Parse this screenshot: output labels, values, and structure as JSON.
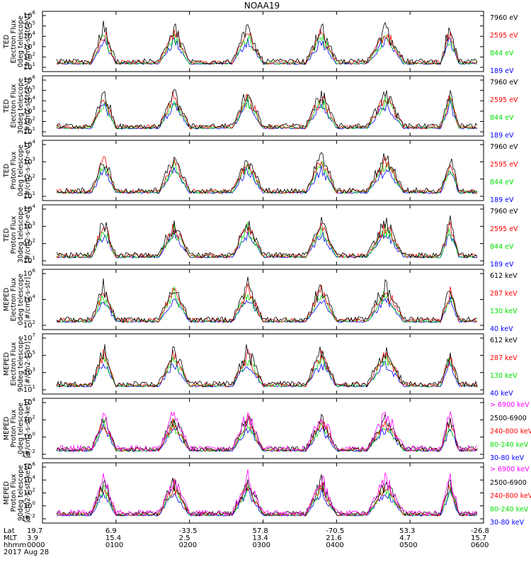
{
  "title": "NOAA19",
  "colors": {
    "black": "#000000",
    "blue": "#0000ff",
    "red": "#ff0000",
    "green": "#00e000",
    "magenta": "#ff00ff"
  },
  "chart_data": [
    {
      "type": "line",
      "ylabel": [
        "TED",
        "Electron Flux",
        "0deg telescope",
        "[#/cm2-s-str-eV]"
      ],
      "ylog": true,
      "yticks": [
        {
          "label": "10",
          "exp": "1"
        },
        {
          "label": "10",
          "exp": "2"
        },
        {
          "label": "10",
          "exp": "3"
        },
        {
          "label": "10",
          "exp": "4"
        },
        {
          "label": "10",
          "exp": "5"
        },
        {
          "label": "10",
          "exp": "6"
        }
      ],
      "series": [
        {
          "name": "7960 eV",
          "color": "#000000"
        },
        {
          "name": "2595 eV",
          "color": "#ff0000"
        },
        {
          "name": "844 eV",
          "color": "#00e000"
        },
        {
          "name": "189 eV",
          "color": "#0000ff"
        }
      ]
    },
    {
      "type": "line",
      "ylabel": [
        "TED",
        "Electron Flux",
        "30deg telescope",
        "[#/cm2-s-str-eV]"
      ],
      "ylog": true,
      "yticks": [
        {
          "label": "10",
          "exp": "1"
        },
        {
          "label": "10",
          "exp": "2"
        },
        {
          "label": "10",
          "exp": "3"
        },
        {
          "label": "10",
          "exp": "4"
        },
        {
          "label": "10",
          "exp": "5"
        },
        {
          "label": "10",
          "exp": "6"
        }
      ],
      "series": [
        {
          "name": "7960 eV",
          "color": "#000000"
        },
        {
          "name": "2595 eV",
          "color": "#ff0000"
        },
        {
          "name": "844 eV",
          "color": "#00e000"
        },
        {
          "name": "189 eV",
          "color": "#0000ff"
        }
      ]
    },
    {
      "type": "line",
      "ylabel": [
        "TED",
        "Proton Flux",
        "0deg telescope",
        "[#/cm2-s-str-eV]"
      ],
      "ylog": true,
      "yticks": [
        {
          "label": "10",
          "exp": "1"
        },
        {
          "label": "10",
          "exp": "2"
        },
        {
          "label": "10",
          "exp": "3"
        },
        {
          "label": "10",
          "exp": "4"
        }
      ],
      "series": [
        {
          "name": "7960 eV",
          "color": "#000000"
        },
        {
          "name": "2595 eV",
          "color": "#ff0000"
        },
        {
          "name": "844 eV",
          "color": "#00e000"
        },
        {
          "name": "189 eV",
          "color": "#0000ff"
        }
      ]
    },
    {
      "type": "line",
      "ylabel": [
        "TED",
        "Proton Flux",
        "30deg telescope",
        "[#/cm2-s-str-eV]"
      ],
      "ylog": true,
      "yticks": [
        {
          "label": "10",
          "exp": "1"
        },
        {
          "label": "10",
          "exp": "2"
        },
        {
          "label": "10",
          "exp": "3"
        },
        {
          "label": "10",
          "exp": "4"
        }
      ],
      "series": [
        {
          "name": "7960 eV",
          "color": "#000000"
        },
        {
          "name": "2595 eV",
          "color": "#ff0000"
        },
        {
          "name": "844 eV",
          "color": "#00e000"
        },
        {
          "name": "189 eV",
          "color": "#0000ff"
        }
      ]
    },
    {
      "type": "line",
      "ylabel": [
        "MEPED",
        "Electron Flux",
        "0deg telescope",
        "[#/cm2-s-str]"
      ],
      "ylog": true,
      "yticks": [
        {
          "label": "10",
          "exp": "2"
        },
        {
          "label": "10",
          "exp": "4"
        },
        {
          "label": "10",
          "exp": "6"
        }
      ],
      "series": [
        {
          "name": "612 keV",
          "color": "#000000"
        },
        {
          "name": "287 keV",
          "color": "#ff0000"
        },
        {
          "name": "130 keV",
          "color": "#00e000"
        },
        {
          "name": "40 keV",
          "color": "#0000ff"
        }
      ]
    },
    {
      "type": "line",
      "ylabel": [
        "MEPED",
        "Electron Flux",
        "90deg telescope",
        "[#/cm2-s-str]"
      ],
      "ylog": true,
      "yticks": [
        {
          "label": "10",
          "exp": "1"
        },
        {
          "label": "10",
          "exp": "3"
        },
        {
          "label": "10",
          "exp": "5"
        },
        {
          "label": "10",
          "exp": "7"
        }
      ],
      "series": [
        {
          "name": "612 keV",
          "color": "#000000"
        },
        {
          "name": "287 keV",
          "color": "#ff0000"
        },
        {
          "name": "130 keV",
          "color": "#00e000"
        },
        {
          "name": "40 keV",
          "color": "#0000ff"
        }
      ]
    },
    {
      "type": "line",
      "ylabel": [
        "MEPED",
        "Proton Flux",
        "0deg telescope",
        "[#/cm2-s-str-keV]"
      ],
      "ylog": true,
      "yticks": [
        {
          "label": "10",
          "exp": "-2"
        },
        {
          "label": "10",
          "exp": "0"
        },
        {
          "label": "10",
          "exp": "2"
        },
        {
          "label": "10",
          "exp": "4"
        }
      ],
      "series": [
        {
          "name": "> 6900 keV",
          "color": "#ff00ff"
        },
        {
          "name": "2500-6900",
          "color": "#000000"
        },
        {
          "name": "240-800 keV",
          "color": "#ff0000"
        },
        {
          "name": "80-240 keV",
          "color": "#00e000"
        },
        {
          "name": "30-80 keV",
          "color": "#0000ff"
        }
      ]
    },
    {
      "type": "line",
      "ylabel": [
        "MEPED",
        "Proton Flux",
        "90deg telescope",
        "[#/cm2-s-str-keV]"
      ],
      "ylog": true,
      "yticks": [
        {
          "label": "10",
          "exp": "-2"
        },
        {
          "label": "10",
          "exp": "0"
        },
        {
          "label": "10",
          "exp": "2"
        },
        {
          "label": "10",
          "exp": "4"
        },
        {
          "label": "10",
          "exp": "6"
        }
      ],
      "series": [
        {
          "name": "> 6900 keV",
          "color": "#ff00ff"
        },
        {
          "name": "2500-6900",
          "color": "#000000"
        },
        {
          "name": "240-800 keV",
          "color": "#ff0000"
        },
        {
          "name": "80-240 keV",
          "color": "#00e000"
        },
        {
          "name": "30-80 keV",
          "color": "#0000ff"
        }
      ]
    }
  ],
  "xaxis": {
    "row_labels": [
      "Lat",
      "MLT",
      "hhmm",
      "2017 Aug 28"
    ],
    "ticks": [
      {
        "lat": "19.7",
        "mlt": "3.9",
        "hhmm": "0000"
      },
      {
        "lat": "6.9",
        "mlt": "15.4",
        "hhmm": "0100"
      },
      {
        "lat": "-33.5",
        "mlt": "2.5",
        "hhmm": "0200"
      },
      {
        "lat": "57.8",
        "mlt": "13.4",
        "hhmm": "0300"
      },
      {
        "lat": "-70.5",
        "mlt": "21.6",
        "hhmm": "0400"
      },
      {
        "lat": "53.3",
        "mlt": "4.7",
        "hhmm": "0500"
      },
      {
        "lat": "-26.8",
        "mlt": "15.7",
        "hhmm": "0600"
      }
    ]
  }
}
